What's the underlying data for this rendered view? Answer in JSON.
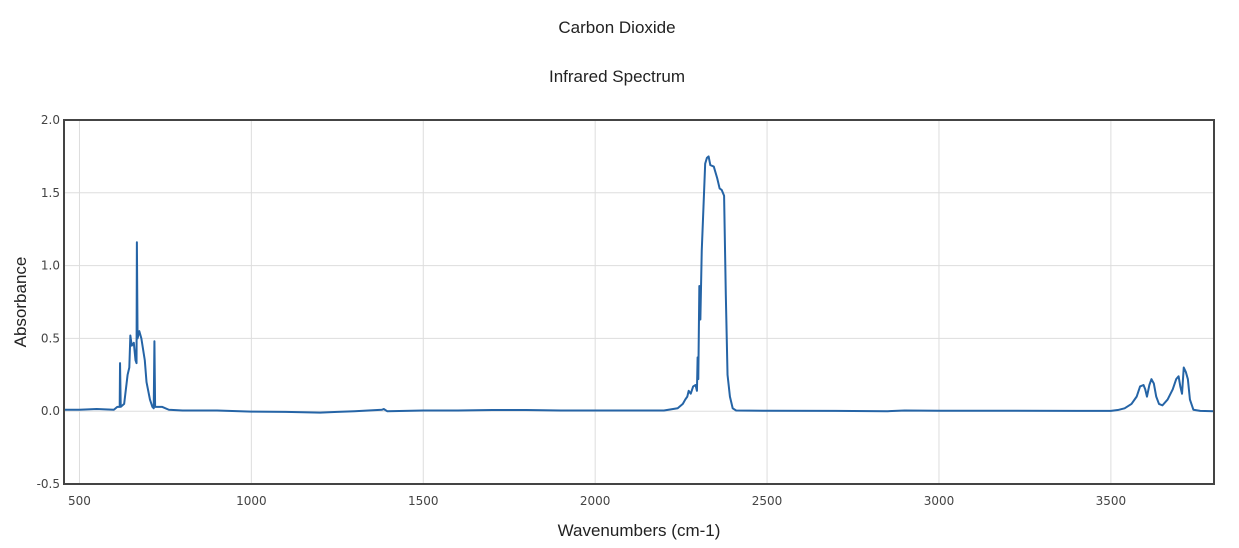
{
  "chart_data": {
    "type": "line",
    "title": "Carbon Dioxide",
    "subtitle": "Infrared Spectrum",
    "xlabel": "Wavenumbers (cm-1)",
    "ylabel": "Absorbance",
    "xlim": [
      455,
      3800
    ],
    "ylim": [
      -0.5,
      2.0
    ],
    "x_ticks": [
      500,
      1000,
      1500,
      2000,
      2500,
      3000,
      3500
    ],
    "y_ticks": [
      -0.5,
      0.0,
      0.5,
      1.0,
      1.5,
      2.0
    ],
    "x_tick_labels": [
      "500",
      "1000",
      "1500",
      "2000",
      "2500",
      "3000",
      "3500"
    ],
    "y_tick_labels": [
      "-0.5",
      "0.0",
      "0.5",
      "1.0",
      "1.5",
      "2.0"
    ],
    "grid": true,
    "series": [
      {
        "color": "#2564a6",
        "points": [
          [
            455,
            0.01
          ],
          [
            500,
            0.01
          ],
          [
            550,
            0.015
          ],
          [
            600,
            0.01
          ],
          [
            610,
            0.03
          ],
          [
            617,
            0.03
          ],
          [
            618,
            0.33
          ],
          [
            620,
            0.03
          ],
          [
            630,
            0.05
          ],
          [
            640,
            0.25
          ],
          [
            645,
            0.3
          ],
          [
            648,
            0.52
          ],
          [
            652,
            0.45
          ],
          [
            658,
            0.47
          ],
          [
            663,
            0.35
          ],
          [
            666,
            0.33
          ],
          [
            667,
            1.16
          ],
          [
            669,
            0.5
          ],
          [
            674,
            0.55
          ],
          [
            680,
            0.5
          ],
          [
            690,
            0.35
          ],
          [
            695,
            0.2
          ],
          [
            705,
            0.08
          ],
          [
            712,
            0.03
          ],
          [
            716,
            0.02
          ],
          [
            718,
            0.48
          ],
          [
            720,
            0.03
          ],
          [
            730,
            0.03
          ],
          [
            740,
            0.03
          ],
          [
            760,
            0.01
          ],
          [
            800,
            0.005
          ],
          [
            900,
            0.005
          ],
          [
            1000,
            -0.003
          ],
          [
            1100,
            -0.005
          ],
          [
            1200,
            -0.01
          ],
          [
            1250,
            -0.005
          ],
          [
            1300,
            0.0
          ],
          [
            1380,
            0.01
          ],
          [
            1385,
            0.015
          ],
          [
            1395,
            0.0
          ],
          [
            1500,
            0.005
          ],
          [
            1600,
            0.005
          ],
          [
            1700,
            0.008
          ],
          [
            1800,
            0.008
          ],
          [
            1900,
            0.005
          ],
          [
            2000,
            0.005
          ],
          [
            2100,
            0.005
          ],
          [
            2200,
            0.005
          ],
          [
            2240,
            0.02
          ],
          [
            2255,
            0.05
          ],
          [
            2262,
            0.08
          ],
          [
            2268,
            0.1
          ],
          [
            2272,
            0.14
          ],
          [
            2278,
            0.12
          ],
          [
            2285,
            0.17
          ],
          [
            2292,
            0.18
          ],
          [
            2296,
            0.14
          ],
          [
            2298,
            0.37
          ],
          [
            2300,
            0.22
          ],
          [
            2303,
            0.86
          ],
          [
            2306,
            0.63
          ],
          [
            2310,
            1.1
          ],
          [
            2315,
            1.4
          ],
          [
            2320,
            1.7
          ],
          [
            2325,
            1.74
          ],
          [
            2330,
            1.75
          ],
          [
            2335,
            1.69
          ],
          [
            2345,
            1.68
          ],
          [
            2355,
            1.6
          ],
          [
            2362,
            1.53
          ],
          [
            2368,
            1.52
          ],
          [
            2375,
            1.48
          ],
          [
            2380,
            0.8
          ],
          [
            2385,
            0.25
          ],
          [
            2392,
            0.1
          ],
          [
            2400,
            0.02
          ],
          [
            2410,
            0.005
          ],
          [
            2500,
            0.003
          ],
          [
            2700,
            0.002
          ],
          [
            2850,
            0.0
          ],
          [
            2900,
            0.005
          ],
          [
            3000,
            0.003
          ],
          [
            3200,
            0.003
          ],
          [
            3400,
            0.002
          ],
          [
            3500,
            0.002
          ],
          [
            3520,
            0.008
          ],
          [
            3540,
            0.02
          ],
          [
            3560,
            0.05
          ],
          [
            3575,
            0.1
          ],
          [
            3585,
            0.17
          ],
          [
            3595,
            0.18
          ],
          [
            3600,
            0.15
          ],
          [
            3605,
            0.1
          ],
          [
            3612,
            0.18
          ],
          [
            3618,
            0.22
          ],
          [
            3625,
            0.19
          ],
          [
            3632,
            0.1
          ],
          [
            3640,
            0.05
          ],
          [
            3650,
            0.04
          ],
          [
            3665,
            0.08
          ],
          [
            3680,
            0.15
          ],
          [
            3690,
            0.22
          ],
          [
            3697,
            0.24
          ],
          [
            3702,
            0.17
          ],
          [
            3707,
            0.12
          ],
          [
            3712,
            0.3
          ],
          [
            3718,
            0.27
          ],
          [
            3724,
            0.22
          ],
          [
            3730,
            0.08
          ],
          [
            3740,
            0.01
          ],
          [
            3760,
            0.002
          ],
          [
            3800,
            0.0
          ]
        ]
      }
    ]
  }
}
